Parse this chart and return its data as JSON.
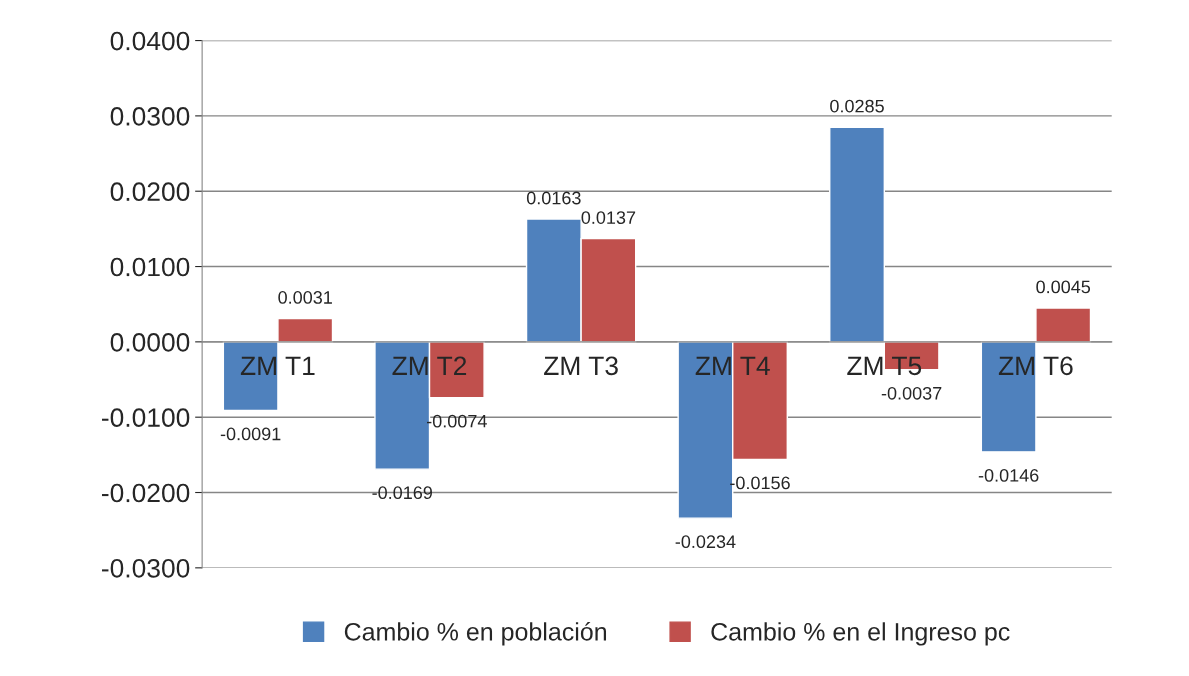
{
  "chart_data": {
    "type": "bar",
    "categories": [
      "ZM T1",
      "ZM T2",
      "ZM T3",
      "ZM T4",
      "ZM T5",
      "ZM T6"
    ],
    "series": [
      {
        "name": "Cambio % en población",
        "color": "#4f81bd",
        "values": [
          -0.0091,
          -0.0169,
          0.0163,
          -0.0234,
          0.0285,
          -0.0146
        ]
      },
      {
        "name": "Cambio % en el Ingreso pc",
        "color": "#c0504d",
        "values": [
          0.0031,
          -0.0074,
          0.0137,
          -0.0156,
          -0.0037,
          0.0045
        ]
      }
    ],
    "ylim": [
      -0.03,
      0.04
    ],
    "yticks": [
      {
        "value": -0.03,
        "label": "-0.0300"
      },
      {
        "value": -0.02,
        "label": "-0.0200"
      },
      {
        "value": -0.01,
        "label": "-0.0100"
      },
      {
        "value": 0,
        "label": "0.0000"
      },
      {
        "value": 0.01,
        "label": "0.0100"
      },
      {
        "value": 0.02,
        "label": "0.0200"
      },
      {
        "value": 0.03,
        "label": "0.0300"
      },
      {
        "value": 0.04,
        "label": "0.0400"
      }
    ],
    "grid": "y",
    "legend": "bottom",
    "data_labels": true
  }
}
